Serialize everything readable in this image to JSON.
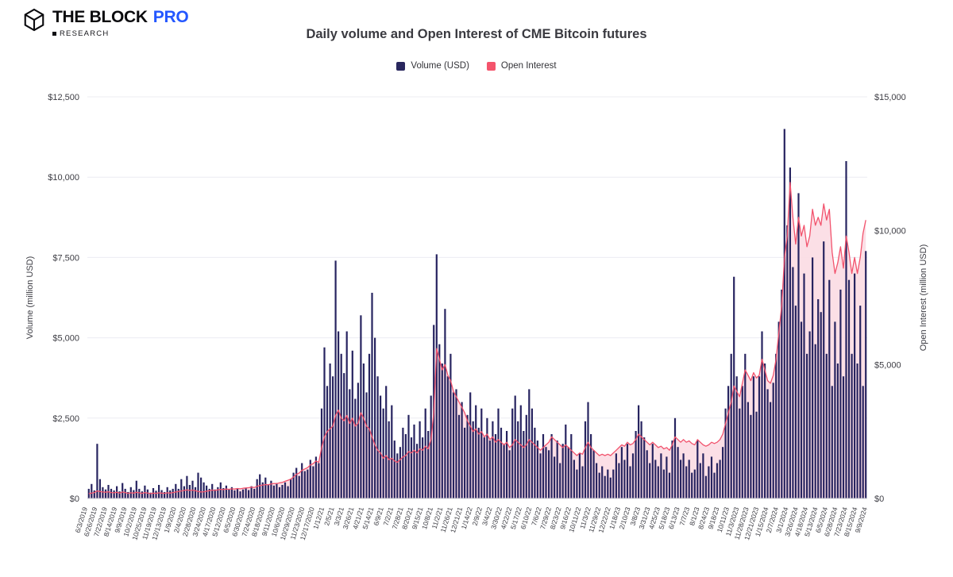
{
  "header": {
    "brand": "THE BLOCK",
    "brand_suffix": "PRO",
    "brand_sub": "RESEARCH",
    "logo_icon": "block-cube-icon"
  },
  "chart_data": {
    "type": "bar+line",
    "title": "Daily volume and Open Interest of CME Bitcoin futures",
    "legend": [
      {
        "label": "Volume (USD)",
        "color": "#29275e",
        "mark": "square"
      },
      {
        "label": "Open Interest",
        "color": "#f4546c",
        "mark": "square"
      }
    ],
    "left_axis": {
      "label": "Volume (million USD)",
      "max": 12500,
      "ticks": [
        "$0",
        "$2,500",
        "$5,000",
        "$7,500",
        "$10,000",
        "$12,500"
      ]
    },
    "right_axis": {
      "label": "Open Interest (million USD)",
      "max": 15000,
      "ticks": [
        "$0",
        "$5,000",
        "$10,000",
        "$15,000"
      ]
    },
    "grid": "horizontal",
    "legend_position": "top-center",
    "colors": {
      "volume_bar": "#272460",
      "oi_line": "#f2536d",
      "oi_fill": "#fbdce3",
      "gridline": "#ececf2",
      "baseline": "#c8c8d2"
    },
    "x_tick_labels": [
      "6/3/2019",
      "6/26/2019",
      "7/22/2019",
      "8/14/2019",
      "9/9/2019",
      "10/2/2019",
      "10/25/2019",
      "11/19/2019",
      "12/13/2019",
      "1/9/2020",
      "2/4/2020",
      "2/28/2020",
      "3/24/2020",
      "4/17/2020",
      "5/12/2020",
      "6/5/2020",
      "6/30/2020",
      "7/24/2020",
      "8/18/2020",
      "9/11/2020",
      "10/6/2020",
      "10/29/2020",
      "11/23/2020",
      "12/17/2020",
      "1/12/21",
      "2/5/21",
      "3/3/21",
      "3/26/21",
      "4/21/21",
      "5/14/21",
      "6/9/21",
      "7/2/21",
      "7/28/21",
      "8/20/21",
      "9/15/21",
      "10/8/21",
      "11/2/21",
      "11/26/21",
      "12/21/21",
      "1/14/22",
      "2/9/22",
      "3/4/22",
      "3/30/22",
      "4/22/22",
      "5/17/22",
      "6/10/22",
      "7/6/22",
      "7/29/22",
      "8/23/22",
      "9/16/22",
      "10/11/22",
      "11/3/22",
      "11/29/22",
      "12/22/22",
      "1/18/23",
      "2/10/23",
      "3/8/23",
      "3/31/23",
      "4/25/23",
      "5/18/23",
      "6/13/23",
      "7/7/23",
      "8/1/23",
      "8/24/23",
      "9/18/23",
      "10/11/23",
      "11/3/2023",
      "11/28/2023",
      "12/21/2023",
      "1/15/2024",
      "2/7/2024",
      "3/1/2024",
      "3/26/2024",
      "4/18/2024",
      "5/13/2024",
      "6/5/2024",
      "6/28/2024",
      "7/23/2024",
      "8/15/2024",
      "9/9/2024"
    ],
    "series": [
      {
        "name": "Volume (USD)",
        "axis": "left",
        "unit": "million USD",
        "values": [
          300,
          450,
          250,
          1700,
          600,
          350,
          280,
          420,
          300,
          250,
          380,
          220,
          480,
          300,
          200,
          350,
          260,
          550,
          300,
          220,
          400,
          280,
          180,
          320,
          240,
          420,
          260,
          200,
          350,
          250,
          300,
          450,
          300,
          600,
          380,
          700,
          420,
          550,
          350,
          800,
          650,
          500,
          400,
          300,
          450,
          280,
          350,
          500,
          320,
          400,
          280,
          350,
          250,
          300,
          220,
          280,
          320,
          260,
          380,
          300,
          600,
          750,
          500,
          650,
          420,
          550,
          400,
          480,
          350,
          420,
          500,
          380,
          600,
          800,
          950,
          700,
          1100,
          850,
          900,
          1200,
          1000,
          1300,
          1100,
          2800,
          4700,
          3500,
          4200,
          3800,
          7400,
          5200,
          4500,
          3900,
          5200,
          3400,
          4600,
          3100,
          3600,
          5700,
          4200,
          3300,
          4500,
          6400,
          5000,
          3800,
          3200,
          2800,
          3500,
          2400,
          2900,
          1800,
          1400,
          1600,
          2200,
          2000,
          2600,
          1900,
          2300,
          1700,
          2400,
          1900,
          2800,
          2100,
          3200,
          5400,
          7600,
          4800,
          4200,
          5900,
          3800,
          4500,
          3300,
          3400,
          2600,
          3000,
          2200,
          2600,
          3300,
          2400,
          2900,
          2200,
          2800,
          1900,
          2500,
          1800,
          2400,
          2000,
          2800,
          2200,
          1700,
          2100,
          1500,
          2800,
          3200,
          2400,
          2900,
          2100,
          2600,
          3400,
          2800,
          2200,
          1800,
          1400,
          2000,
          1600,
          1500,
          2000,
          1300,
          1800,
          1100,
          1700,
          2300,
          1600,
          2000,
          1200,
          900,
          1400,
          1000,
          2400,
          3000,
          2000,
          1500,
          1100,
          800,
          1000,
          700,
          900,
          650,
          900,
          1400,
          1100,
          1600,
          1200,
          1700,
          1000,
          1400,
          2100,
          2900,
          2400,
          1900,
          1500,
          1100,
          1700,
          1200,
          1000,
          1400,
          900,
          1300,
          800,
          1800,
          2500,
          1600,
          1200,
          1400,
          1000,
          1200,
          800,
          900,
          1800,
          1100,
          1400,
          700,
          1000,
          1300,
          800,
          1100,
          1200,
          1600,
          2800,
          3500,
          4500,
          6900,
          3800,
          2800,
          3500,
          4500,
          3000,
          2600,
          3800,
          2700,
          3800,
          5200,
          4200,
          3400,
          3000,
          3600,
          4500,
          5500,
          6500,
          11500,
          8500,
          10300,
          7200,
          6000,
          9500,
          5500,
          7000,
          4500,
          5200,
          7500,
          4800,
          6200,
          5800,
          8000,
          4500,
          6800,
          3500,
          5500,
          4200,
          6500,
          3800,
          10500,
          6800,
          4500,
          7000,
          4200,
          6000,
          3500,
          7700
        ]
      },
      {
        "name": "Open Interest",
        "axis": "right",
        "unit": "million USD",
        "values": [
          180,
          200,
          220,
          280,
          260,
          240,
          230,
          250,
          220,
          210,
          230,
          200,
          240,
          220,
          190,
          210,
          200,
          230,
          210,
          190,
          220,
          200,
          180,
          200,
          190,
          210,
          200,
          190,
          210,
          200,
          220,
          240,
          260,
          280,
          300,
          320,
          300,
          310,
          290,
          260,
          240,
          250,
          270,
          290,
          310,
          300,
          320,
          340,
          330,
          350,
          340,
          360,
          350,
          370,
          360,
          380,
          390,
          400,
          420,
          410,
          450,
          480,
          500,
          520,
          510,
          540,
          560,
          550,
          580,
          600,
          640,
          680,
          720,
          800,
          900,
          950,
          1050,
          1100,
          1150,
          1250,
          1300,
          1400,
          1350,
          1900,
          2300,
          2500,
          2600,
          2700,
          3100,
          3300,
          3000,
          2900,
          3100,
          2800,
          3000,
          2700,
          2800,
          3200,
          3000,
          2700,
          2600,
          2300,
          2000,
          1800,
          1700,
          1500,
          1600,
          1450,
          1500,
          1400,
          1350,
          1450,
          1550,
          1600,
          1750,
          1700,
          1800,
          1700,
          1850,
          1800,
          1950,
          1850,
          2200,
          3200,
          5600,
          5200,
          4800,
          5000,
          4600,
          4400,
          4000,
          3800,
          3600,
          3400,
          3200,
          2900,
          2700,
          2500,
          2600,
          2400,
          2500,
          2300,
          2400,
          2200,
          2300,
          2100,
          2200,
          2100,
          2000,
          2100,
          1900,
          2000,
          2200,
          2100,
          2000,
          1900,
          2000,
          2200,
          2100,
          2000,
          1900,
          1800,
          1900,
          2000,
          2100,
          2300,
          2200,
          2100,
          2000,
          1900,
          2000,
          1900,
          1800,
          1700,
          1600,
          1700,
          1650,
          1900,
          2100,
          1900,
          1800,
          1700,
          1600,
          1650,
          1600,
          1650,
          1600,
          1700,
          1800,
          1900,
          2000,
          1950,
          2100,
          2000,
          2050,
          2200,
          2400,
          2300,
          2200,
          2100,
          2000,
          2100,
          2000,
          1900,
          1950,
          1850,
          1900,
          1800,
          2000,
          2300,
          2200,
          2100,
          2200,
          2100,
          2150,
          2050,
          2000,
          2200,
          2100,
          2000,
          1950,
          2000,
          2100,
          2050,
          2100,
          2200,
          2400,
          2800,
          3200,
          3600,
          4200,
          4000,
          3800,
          4300,
          4800,
          4600,
          4400,
          4700,
          4500,
          4600,
          5200,
          4800,
          4400,
          4300,
          4600,
          5200,
          6200,
          7200,
          9000,
          9800,
          11800,
          10500,
          9500,
          10500,
          9800,
          10200,
          9400,
          9800,
          10800,
          10200,
          10500,
          10200,
          11000,
          10400,
          10800,
          9200,
          8400,
          8800,
          9400,
          8600,
          9800,
          9200,
          8400,
          9000,
          8400,
          9000,
          9900,
          10400
        ]
      }
    ]
  }
}
